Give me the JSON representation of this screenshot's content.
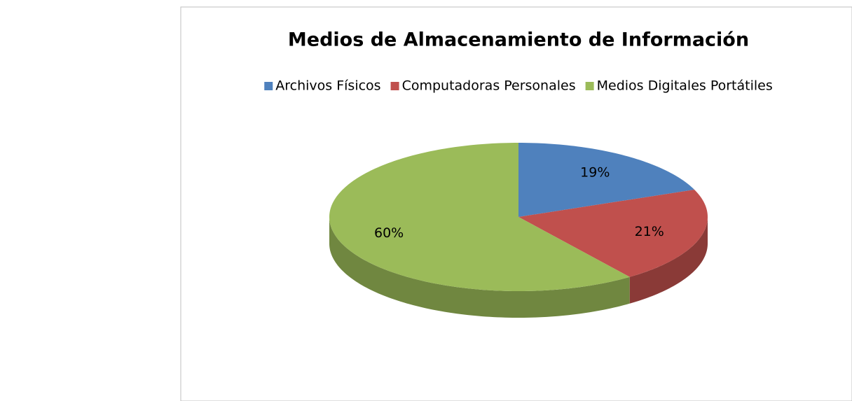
{
  "chart_data": {
    "type": "pie",
    "title": "Medios de Almacenamiento de Información",
    "categories": [
      "Archivos Físicos",
      "Computadoras Personales",
      "Medios Digitales Portátiles"
    ],
    "values": [
      19,
      21,
      60
    ],
    "value_labels": [
      "19%",
      "21%",
      "60%"
    ],
    "colors": [
      "#4f81bd",
      "#c0504d",
      "#9bbb59"
    ],
    "legend": "top"
  }
}
